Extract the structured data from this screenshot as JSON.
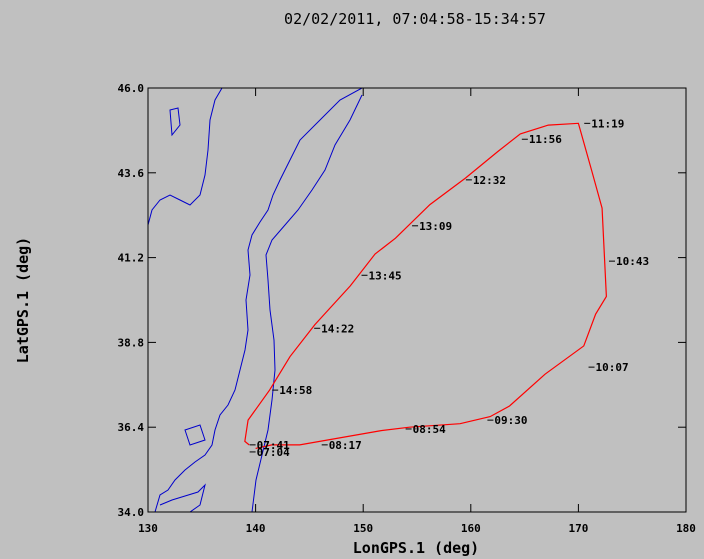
{
  "chart_data": {
    "type": "line",
    "title": "02/02/2011, 07:04:58-15:34:57",
    "x_label": "LonGPS.1 (deg)",
    "y_label": "LatGPS.1 (deg)",
    "xlim": [
      130,
      180
    ],
    "xticks": [
      130,
      140,
      150,
      160,
      170,
      180
    ],
    "ylim": [
      34,
      46
    ],
    "yticks": [
      {
        "value": 34,
        "label": "34.0"
      },
      36.4,
      38.8,
      41.2,
      43.6,
      {
        "value": 46,
        "label": "46.0"
      }
    ],
    "series": [
      {
        "name": "track",
        "color": "#ff0000",
        "x": [
          140.0,
          141.5,
          144.1,
          151.6,
          154.3,
          159.0,
          161.8,
          163.6,
          166.9,
          170.5,
          171.6,
          172.6,
          172.2,
          171.2,
          170.0,
          167.2,
          164.6,
          162.5,
          159.5,
          156.2,
          153.0,
          151.1,
          148.8,
          145.5,
          143.2,
          141.3,
          139.3,
          139.0,
          139.4
        ],
        "values": [
          35.8,
          35.9,
          35.9,
          36.3,
          36.4,
          36.5,
          36.7,
          37.0,
          37.9,
          38.7,
          39.6,
          40.1,
          42.6,
          43.7,
          45.0,
          44.95,
          44.7,
          44.2,
          43.45,
          42.7,
          41.75,
          41.3,
          40.4,
          39.3,
          38.4,
          37.45,
          36.6,
          36.0,
          35.9
        ]
      }
    ],
    "annotations": [
      {
        "text": "07:04",
        "x": 140.0,
        "y": 35.7
      },
      {
        "text": "07:41",
        "x": 140.0,
        "y": 35.9
      },
      {
        "text": "08:17",
        "x": 146.7,
        "y": 35.9
      },
      {
        "text": "08:54",
        "x": 154.5,
        "y": 36.35
      },
      {
        "text": "09:30",
        "x": 162.1,
        "y": 36.6
      },
      {
        "text": "10:07",
        "x": 171.5,
        "y": 38.1
      },
      {
        "text": "10:43",
        "x": 173.4,
        "y": 41.1
      },
      {
        "text": "11:19",
        "x": 171.1,
        "y": 45.0
      },
      {
        "text": "11:56",
        "x": 165.3,
        "y": 44.55
      },
      {
        "text": "12:32",
        "x": 160.1,
        "y": 43.4
      },
      {
        "text": "13:09",
        "x": 155.1,
        "y": 42.1
      },
      {
        "text": "13:45",
        "x": 150.4,
        "y": 40.7
      },
      {
        "text": "14:22",
        "x": 146.0,
        "y": 39.2
      },
      {
        "text": "14:58",
        "x": 142.1,
        "y": 37.45
      }
    ]
  }
}
